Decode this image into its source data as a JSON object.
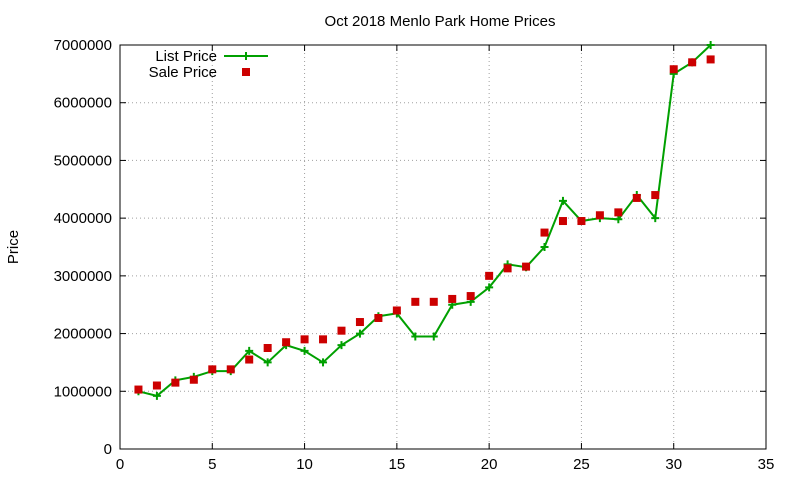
{
  "chart_data": {
    "type": "line",
    "title": "Oct 2018 Menlo Park Home Prices",
    "xlabel": "",
    "ylabel": "Price",
    "xlim": [
      0,
      35
    ],
    "ylim": [
      0,
      7000000
    ],
    "xticks": [
      0,
      5,
      10,
      15,
      20,
      25,
      30,
      35
    ],
    "yticks": [
      0,
      1000000,
      2000000,
      3000000,
      4000000,
      5000000,
      6000000,
      7000000
    ],
    "grid": true,
    "legend_position": "top-left",
    "series": [
      {
        "name": "List Price",
        "style": "line-with-plus-markers",
        "color": "#00a000",
        "x": [
          1,
          2,
          3,
          4,
          5,
          6,
          7,
          8,
          9,
          10,
          11,
          12,
          13,
          14,
          15,
          16,
          17,
          18,
          19,
          20,
          21,
          22,
          23,
          24,
          25,
          26,
          27,
          28,
          29,
          30,
          31,
          32
        ],
        "y": [
          1000000,
          920000,
          1190000,
          1250000,
          1350000,
          1350000,
          1700000,
          1500000,
          1800000,
          1700000,
          1500000,
          1800000,
          2000000,
          2300000,
          2350000,
          1950000,
          1950000,
          2500000,
          2550000,
          2800000,
          3200000,
          3150000,
          3500000,
          4300000,
          3950000,
          4000000,
          3980000,
          4400000,
          4000000,
          6500000,
          6700000,
          7000000
        ]
      },
      {
        "name": "Sale Price",
        "style": "square-markers",
        "color": "#cc0000",
        "x": [
          1,
          2,
          3,
          4,
          5,
          6,
          7,
          8,
          9,
          10,
          11,
          12,
          13,
          14,
          15,
          16,
          17,
          18,
          19,
          20,
          21,
          22,
          23,
          24,
          25,
          26,
          27,
          28,
          29,
          30,
          31,
          32
        ],
        "y": [
          1030000,
          1100000,
          1150000,
          1200000,
          1380000,
          1380000,
          1550000,
          1750000,
          1850000,
          1900000,
          1900000,
          2050000,
          2200000,
          2270000,
          2400000,
          2550000,
          2550000,
          2600000,
          2650000,
          3000000,
          3130000,
          3160000,
          3750000,
          3950000,
          3950000,
          4050000,
          4100000,
          4350000,
          4400000,
          6580000,
          6700000,
          6750000
        ]
      }
    ]
  }
}
